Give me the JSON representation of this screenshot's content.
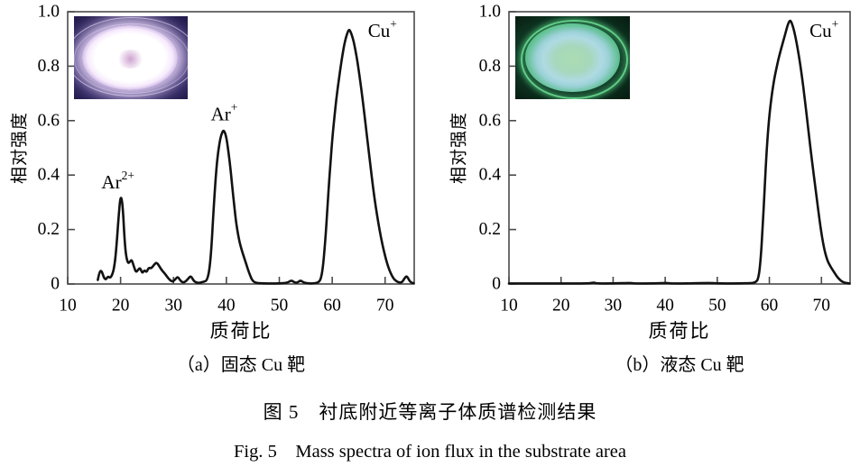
{
  "figure": {
    "caption_cn": "图 5　衬底附近等离子体质谱检测结果",
    "caption_en": "Fig. 5　Mass spectra of ion flux in the substrate area"
  },
  "colors": {
    "curve": "#121212",
    "frame": "#4a4a4a",
    "text": "#000000",
    "inset_a_base": "#5a4694",
    "inset_b_base": "#123f29"
  },
  "insets": [
    {
      "icon": "purple-plasma-discharge-photo"
    },
    {
      "icon": "green-plasma-discharge-photo"
    }
  ],
  "chart_data": [
    {
      "type": "line",
      "panel_label": "（a）固态 Cu 靶",
      "xlabel": "质荷比",
      "ylabel": "相对强度",
      "xlim": [
        10,
        75.5
      ],
      "ylim": [
        0,
        1.0
      ],
      "xticks": [
        10,
        20,
        30,
        40,
        50,
        60,
        70
      ],
      "yticks": [
        0,
        0.2,
        0.4,
        0.6,
        0.8,
        1.0
      ],
      "grid": false,
      "annotations": [
        {
          "base": "Ar",
          "sup": "2+",
          "x": 19.5,
          "y": 0.375
        },
        {
          "base": "Ar",
          "sup": "+",
          "x": 39.6,
          "y": 0.625
        },
        {
          "base": "Cu",
          "sup": "+",
          "x": 69.5,
          "y": 0.93
        }
      ],
      "series": [
        {
          "name": "solid Cu target spectrum",
          "points": [
            [
              15.7,
              0.015
            ],
            [
              16.0,
              0.045
            ],
            [
              16.4,
              0.05
            ],
            [
              16.8,
              0.025
            ],
            [
              17.2,
              0.015
            ],
            [
              17.6,
              0.028
            ],
            [
              18.0,
              0.022
            ],
            [
              18.4,
              0.032
            ],
            [
              18.8,
              0.06
            ],
            [
              19.2,
              0.13
            ],
            [
              19.6,
              0.24
            ],
            [
              19.9,
              0.31
            ],
            [
              20.15,
              0.32
            ],
            [
              20.4,
              0.285
            ],
            [
              20.7,
              0.18
            ],
            [
              21.0,
              0.105
            ],
            [
              21.4,
              0.075
            ],
            [
              21.8,
              0.082
            ],
            [
              22.1,
              0.09
            ],
            [
              22.5,
              0.065
            ],
            [
              22.9,
              0.042
            ],
            [
              23.3,
              0.052
            ],
            [
              23.7,
              0.06
            ],
            [
              24.1,
              0.038
            ],
            [
              24.5,
              0.052
            ],
            [
              24.9,
              0.042
            ],
            [
              25.3,
              0.06
            ],
            [
              25.8,
              0.057
            ],
            [
              26.3,
              0.07
            ],
            [
              26.8,
              0.08
            ],
            [
              27.3,
              0.066
            ],
            [
              27.8,
              0.05
            ],
            [
              28.3,
              0.04
            ],
            [
              28.8,
              0.026
            ],
            [
              29.3,
              0.015
            ],
            [
              29.8,
              0.008
            ],
            [
              30.3,
              0.016
            ],
            [
              30.8,
              0.028
            ],
            [
              31.3,
              0.012
            ],
            [
              31.8,
              0.005
            ],
            [
              32.3,
              0.009
            ],
            [
              32.8,
              0.02
            ],
            [
              33.3,
              0.03
            ],
            [
              33.8,
              0.012
            ],
            [
              34.3,
              0.005
            ],
            [
              34.8,
              0.004
            ],
            [
              35.3,
              0.006
            ],
            [
              35.8,
              0.009
            ],
            [
              36.3,
              0.012
            ],
            [
              36.8,
              0.05
            ],
            [
              37.2,
              0.14
            ],
            [
              37.6,
              0.28
            ],
            [
              38.0,
              0.4
            ],
            [
              38.4,
              0.48
            ],
            [
              38.8,
              0.53
            ],
            [
              39.2,
              0.558
            ],
            [
              39.5,
              0.565
            ],
            [
              39.9,
              0.548
            ],
            [
              40.3,
              0.5
            ],
            [
              40.8,
              0.42
            ],
            [
              41.3,
              0.32
            ],
            [
              41.8,
              0.23
            ],
            [
              42.3,
              0.17
            ],
            [
              42.8,
              0.13
            ],
            [
              43.3,
              0.1
            ],
            [
              43.8,
              0.07
            ],
            [
              44.3,
              0.04
            ],
            [
              44.8,
              0.016
            ],
            [
              45.3,
              0.006
            ],
            [
              46.0,
              0.003
            ],
            [
              47.0,
              0.002
            ],
            [
              48.5,
              0.002
            ],
            [
              50.0,
              0.002
            ],
            [
              51.5,
              0.004
            ],
            [
              52.3,
              0.014
            ],
            [
              52.8,
              0.006
            ],
            [
              53.4,
              0.004
            ],
            [
              54.0,
              0.014
            ],
            [
              54.6,
              0.005
            ],
            [
              55.5,
              0.002
            ],
            [
              56.5,
              0.002
            ],
            [
              57.4,
              0.005
            ],
            [
              57.9,
              0.02
            ],
            [
              58.3,
              0.07
            ],
            [
              58.7,
              0.16
            ],
            [
              59.1,
              0.28
            ],
            [
              59.5,
              0.4
            ],
            [
              60.0,
              0.53
            ],
            [
              60.5,
              0.63
            ],
            [
              61.0,
              0.715
            ],
            [
              61.5,
              0.785
            ],
            [
              62.0,
              0.85
            ],
            [
              62.5,
              0.9
            ],
            [
              63.0,
              0.93
            ],
            [
              63.3,
              0.935
            ],
            [
              63.8,
              0.91
            ],
            [
              64.3,
              0.87
            ],
            [
              65.0,
              0.79
            ],
            [
              66.0,
              0.64
            ],
            [
              67.0,
              0.47
            ],
            [
              68.0,
              0.31
            ],
            [
              69.0,
              0.19
            ],
            [
              70.0,
              0.1
            ],
            [
              70.8,
              0.05
            ],
            [
              71.5,
              0.022
            ],
            [
              72.1,
              0.01
            ],
            [
              72.7,
              0.005
            ],
            [
              73.2,
              0.006
            ],
            [
              73.7,
              0.022
            ],
            [
              74.1,
              0.03
            ],
            [
              74.5,
              0.015
            ],
            [
              74.9,
              0.005
            ],
            [
              75.4,
              0.003
            ]
          ]
        }
      ]
    },
    {
      "type": "line",
      "panel_label": "（b）液态 Cu 靶",
      "xlabel": "质荷比",
      "ylabel": "相对强度",
      "xlim": [
        10,
        75.5
      ],
      "ylim": [
        0,
        1.0
      ],
      "xticks": [
        10,
        20,
        30,
        40,
        50,
        60,
        70
      ],
      "yticks": [
        0,
        0.2,
        0.4,
        0.6,
        0.8,
        1.0
      ],
      "grid": false,
      "annotations": [
        {
          "base": "Cu",
          "sup": "+",
          "x": 70.5,
          "y": 0.93
        }
      ],
      "series": [
        {
          "name": "liquid Cu target spectrum",
          "points": [
            [
              10.0,
              0.002
            ],
            [
              14.0,
              0.002
            ],
            [
              18.0,
              0.002
            ],
            [
              22.0,
              0.002
            ],
            [
              25.5,
              0.002
            ],
            [
              26.3,
              0.006
            ],
            [
              26.8,
              0.002
            ],
            [
              30.0,
              0.002
            ],
            [
              33.5,
              0.004
            ],
            [
              34.0,
              0.002
            ],
            [
              38.0,
              0.002
            ],
            [
              40.5,
              0.004
            ],
            [
              41.0,
              0.002
            ],
            [
              45.0,
              0.002
            ],
            [
              48.5,
              0.004
            ],
            [
              50.0,
              0.002
            ],
            [
              54.0,
              0.002
            ],
            [
              56.5,
              0.003
            ],
            [
              57.4,
              0.006
            ],
            [
              57.9,
              0.02
            ],
            [
              58.3,
              0.08
            ],
            [
              58.7,
              0.2
            ],
            [
              59.1,
              0.35
            ],
            [
              59.5,
              0.5
            ],
            [
              60.0,
              0.62
            ],
            [
              60.5,
              0.7
            ],
            [
              61.0,
              0.76
            ],
            [
              61.5,
              0.805
            ],
            [
              62.0,
              0.845
            ],
            [
              62.5,
              0.88
            ],
            [
              63.0,
              0.915
            ],
            [
              63.5,
              0.95
            ],
            [
              63.9,
              0.968
            ],
            [
              64.2,
              0.965
            ],
            [
              64.7,
              0.935
            ],
            [
              65.2,
              0.89
            ],
            [
              66.0,
              0.8
            ],
            [
              67.0,
              0.65
            ],
            [
              68.0,
              0.48
            ],
            [
              69.0,
              0.33
            ],
            [
              69.8,
              0.21
            ],
            [
              70.5,
              0.13
            ],
            [
              71.1,
              0.088
            ],
            [
              71.7,
              0.065
            ],
            [
              72.2,
              0.05
            ],
            [
              72.8,
              0.032
            ],
            [
              73.4,
              0.018
            ],
            [
              74.0,
              0.008
            ],
            [
              74.6,
              0.004
            ],
            [
              75.4,
              0.002
            ]
          ]
        }
      ]
    }
  ]
}
